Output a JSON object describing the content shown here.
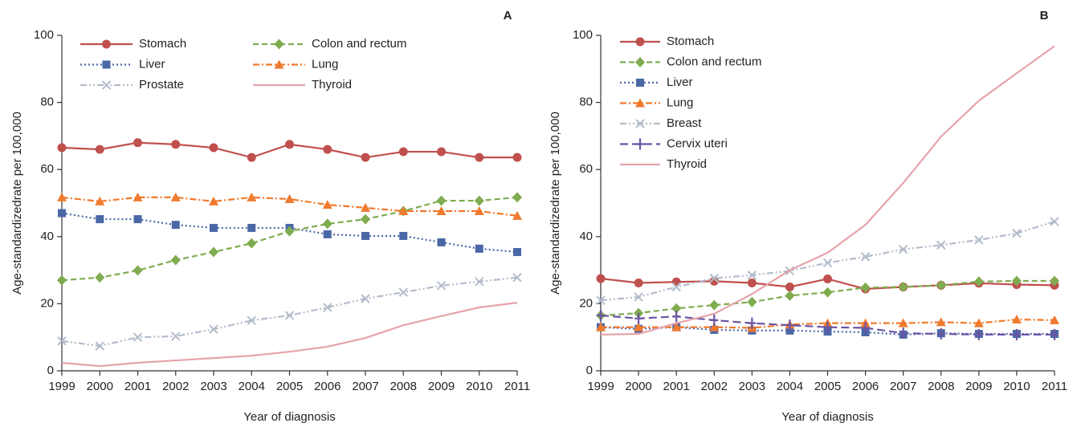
{
  "chart_data": [
    {
      "type": "line",
      "panel_label": "A",
      "y_label": "Age-standardizedrate per 100,000",
      "x_label": "Year of diagnosis",
      "categories": [
        "1999",
        "2000",
        "2001",
        "2002",
        "2003",
        "2004",
        "2005",
        "2006",
        "2007",
        "2008",
        "2009",
        "2010",
        "2011"
      ],
      "ylim": [
        0,
        100
      ],
      "yticks": [
        0,
        20,
        40,
        60,
        80,
        100
      ],
      "legend_columns": 2,
      "series": [
        {
          "name": "Stomach",
          "color": "#c0504d",
          "marker": "circle",
          "dash": "solid",
          "values": [
            66.5,
            66,
            68,
            67.5,
            66.5,
            63.6,
            67.5,
            66,
            63.6,
            65.3,
            65.3,
            63.6,
            63.6
          ]
        },
        {
          "name": "Liver",
          "color": "#4a67a6",
          "marker": "square",
          "dash": "dotted",
          "values": [
            47,
            45.2,
            45.2,
            43.5,
            42.6,
            42.6,
            42.6,
            40.7,
            40.2,
            40.2,
            38.3,
            36.4,
            35.4
          ]
        },
        {
          "name": "Prostate",
          "color": "#b3bccb",
          "marker": "x",
          "dash": "dashdotdot",
          "values": [
            8.9,
            7.4,
            10,
            10.3,
            12.4,
            15,
            16.5,
            18.9,
            21.5,
            23.4,
            25.4,
            26.6,
            27.8
          ]
        },
        {
          "name": "Colon and rectum",
          "color": "#7fac4f",
          "marker": "diamond",
          "dash": "dashed",
          "values": [
            27,
            27.8,
            29.9,
            33,
            35.4,
            38,
            41.6,
            43.8,
            45.2,
            47.6,
            50.7,
            50.7,
            51.7
          ]
        },
        {
          "name": "Lung",
          "color": "#f07a2e",
          "marker": "triangle",
          "dash": "dashdot",
          "values": [
            51.7,
            50.5,
            51.7,
            51.7,
            50.5,
            51.7,
            51.2,
            49.5,
            48.6,
            47.6,
            47.6,
            47.6,
            46.2
          ]
        },
        {
          "name": "Thyroid",
          "color": "#e6a3aa",
          "marker": "none",
          "dash": "solid",
          "values": [
            2.4,
            1.4,
            2.4,
            3.1,
            3.8,
            4.5,
            5.7,
            7.2,
            9.8,
            13.6,
            16.3,
            18.9,
            20.3
          ]
        }
      ]
    },
    {
      "type": "line",
      "panel_label": "B",
      "y_label": "Age-standardizedrate per 100,000",
      "x_label": "Year of diagnosis",
      "categories": [
        "1999",
        "2000",
        "2001",
        "2002",
        "2003",
        "2004",
        "2005",
        "2006",
        "2007",
        "2008",
        "2009",
        "2010",
        "2011"
      ],
      "ylim": [
        0,
        100
      ],
      "yticks": [
        0,
        20,
        40,
        60,
        80,
        100
      ],
      "legend_columns": 1,
      "series": [
        {
          "name": "Stomach",
          "color": "#c0504d",
          "marker": "circle",
          "dash": "solid",
          "values": [
            27.5,
            26.2,
            26.5,
            26.7,
            26.2,
            25,
            27.4,
            24.4,
            25,
            25.5,
            26.1,
            25.7,
            25.5
          ]
        },
        {
          "name": "Colon and rectum",
          "color": "#7fac4f",
          "marker": "diamond",
          "dash": "dashed",
          "values": [
            16.5,
            17.2,
            18.6,
            19.6,
            20.5,
            22.4,
            23.4,
            24.8,
            25,
            25.5,
            26.6,
            26.8,
            26.8
          ]
        },
        {
          "name": "Liver",
          "color": "#4a67a6",
          "marker": "square",
          "dash": "dotted",
          "values": [
            13,
            12.5,
            13,
            12.2,
            12,
            12,
            11.7,
            11.5,
            10.8,
            11.2,
            11,
            11,
            11
          ]
        },
        {
          "name": "Lung",
          "color": "#f07a2e",
          "marker": "triangle",
          "dash": "dashdot",
          "values": [
            13,
            13,
            13,
            13,
            12.8,
            13.8,
            14.2,
            14.2,
            14.2,
            14.5,
            14.2,
            15.3,
            15.1
          ]
        },
        {
          "name": "Breast",
          "color": "#b3bccb",
          "marker": "x",
          "dash": "dashdotdot",
          "values": [
            21,
            22,
            25,
            27.6,
            28.5,
            29.8,
            32.2,
            34,
            36.2,
            37.5,
            39,
            41,
            44.5
          ]
        },
        {
          "name": "Cervix uteri",
          "color": "#6a55a3",
          "marker": "plus",
          "dash": "longdash",
          "values": [
            16.5,
            15.6,
            16.2,
            15.1,
            14.2,
            13.6,
            13,
            12.8,
            11.2,
            11,
            10.8,
            10.8,
            10.8
          ]
        },
        {
          "name": "Thyroid",
          "color": "#e6a3aa",
          "marker": "none",
          "dash": "solid",
          "values": [
            10.8,
            11,
            14.2,
            17,
            22.9,
            30,
            35.2,
            43.5,
            56,
            69.8,
            80.5,
            88.7,
            96.8
          ]
        }
      ]
    }
  ]
}
